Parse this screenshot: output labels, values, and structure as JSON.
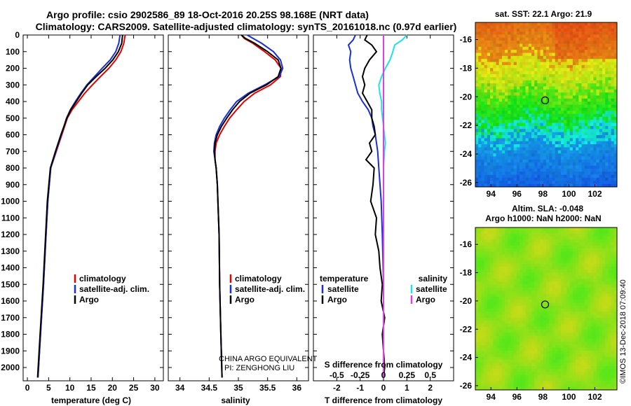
{
  "title_line1": "Argo profile: csio 2902586_89 18-Oct-2016 20.25S 98.168E (NRT data)",
  "title_line2": "Climatology: CARS2009. Satellite-adjusted climatology: synTS_20161018.nc (0.97d earlier)",
  "colors": {
    "climatology": "#e00000",
    "satellite": "#1a2fd6",
    "argo": "#000000",
    "sat_salinity": "#22e0e8",
    "argo_salinity": "#e040e0"
  },
  "chart_data": [
    {
      "type": "line",
      "id": "temperature",
      "xlabel": "temperature (deg C)",
      "xlim": [
        -1,
        32
      ],
      "ylim": [
        2080,
        0
      ],
      "xticks": [
        0,
        5,
        10,
        15,
        20,
        25,
        30
      ],
      "yticks": [
        0,
        100,
        200,
        300,
        400,
        500,
        600,
        700,
        800,
        900,
        1000,
        1100,
        1200,
        1300,
        1400,
        1500,
        1600,
        1700,
        1800,
        1900,
        2000
      ],
      "legend": [
        "climatology",
        "satellite-adj. clim.",
        "Argo"
      ],
      "legend_position": "lower-center",
      "series": [
        {
          "name": "climatology",
          "color": "#e00000",
          "depth": [
            0,
            50,
            100,
            150,
            200,
            250,
            300,
            350,
            400,
            450,
            500,
            600,
            700,
            800,
            1000,
            1200,
            1500,
            1800,
            2060
          ],
          "values": [
            23.0,
            22.7,
            22.0,
            20.8,
            19.2,
            17.2,
            15.3,
            13.5,
            12.0,
            10.5,
            9.4,
            8.1,
            6.8,
            5.5,
            4.8,
            4.4,
            3.8,
            3.1,
            2.5
          ]
        },
        {
          "name": "satellite-adj. clim.",
          "color": "#1a2fd6",
          "depth": [
            0,
            50,
            100,
            150,
            200,
            250,
            300,
            350,
            400,
            450,
            500,
            600,
            700,
            800,
            1000,
            1200,
            1500,
            1800,
            2060
          ],
          "values": [
            21.8,
            21.5,
            20.8,
            19.5,
            17.6,
            15.8,
            14.0,
            12.6,
            11.3,
            10.1,
            9.2,
            8.0,
            6.7,
            5.5,
            4.8,
            4.4,
            3.8,
            3.1,
            2.5
          ]
        },
        {
          "name": "Argo",
          "color": "#000000",
          "depth": [
            0,
            50,
            100,
            150,
            200,
            250,
            300,
            350,
            400,
            450,
            500,
            600,
            700,
            800,
            1000,
            1200,
            1500,
            1800,
            2060
          ],
          "values": [
            22.4,
            22.2,
            21.4,
            20.1,
            18.3,
            16.2,
            14.2,
            12.8,
            11.5,
            10.2,
            9.3,
            7.9,
            6.6,
            5.4,
            4.7,
            4.3,
            3.7,
            3.0,
            2.4
          ]
        }
      ]
    },
    {
      "type": "line",
      "id": "salinity",
      "xlabel": "salinity",
      "xlim": [
        33.8,
        36.2
      ],
      "ylim": [
        2080,
        0
      ],
      "xticks": [
        34,
        34.5,
        35,
        35.5,
        36
      ],
      "xticklabels": [
        "34",
        "34.5",
        "35",
        "35.5",
        "36"
      ],
      "legend": [
        "climatology",
        "satellite-adj. clim.",
        "Argo"
      ],
      "legend_position": "lower-center",
      "series": [
        {
          "name": "climatology",
          "color": "#e00000",
          "depth": [
            0,
            20,
            50,
            100,
            150,
            200,
            250,
            300,
            350,
            400,
            450,
            500,
            550,
            600,
            650,
            700,
            750,
            800,
            900,
            1000,
            1200,
            1500,
            1800,
            2060
          ],
          "values": [
            35.05,
            35.1,
            35.25,
            35.45,
            35.63,
            35.73,
            35.72,
            35.55,
            35.28,
            35.1,
            34.97,
            34.85,
            34.76,
            34.68,
            34.62,
            34.6,
            34.6,
            34.62,
            34.64,
            34.65,
            34.67,
            34.68,
            34.7,
            34.72
          ]
        },
        {
          "name": "satellite-adj. clim.",
          "color": "#1a2fd6",
          "depth": [
            0,
            20,
            50,
            100,
            150,
            200,
            250,
            300,
            350,
            400,
            450,
            500,
            550,
            600,
            650,
            700,
            750,
            800,
            900,
            1000,
            1200,
            1500,
            1800,
            2060
          ],
          "values": [
            35.15,
            35.25,
            35.4,
            35.6,
            35.72,
            35.76,
            35.7,
            35.45,
            35.17,
            34.97,
            34.86,
            34.76,
            34.68,
            34.62,
            34.59,
            34.58,
            34.6,
            34.62,
            34.64,
            34.65,
            34.67,
            34.68,
            34.7,
            34.72
          ]
        },
        {
          "name": "Argo",
          "color": "#000000",
          "depth": [
            0,
            20,
            50,
            100,
            150,
            200,
            250,
            300,
            350,
            400,
            450,
            500,
            550,
            600,
            650,
            700,
            750,
            800,
            900,
            1000,
            1200,
            1500,
            1800,
            2060
          ],
          "values": [
            35.05,
            35.12,
            35.28,
            35.5,
            35.68,
            35.73,
            35.68,
            35.48,
            35.2,
            35.02,
            34.9,
            34.8,
            34.71,
            34.64,
            34.6,
            34.59,
            34.6,
            34.62,
            34.64,
            34.65,
            34.67,
            34.68,
            34.7,
            34.72
          ]
        }
      ],
      "annotations": [
        "CHINA ARGO EQUIVALENT",
        "PI: ZENGHONG LIU"
      ]
    },
    {
      "type": "line",
      "id": "difference",
      "xlabel": "T difference from climatology",
      "xlabel_top": "S difference from climatology",
      "xlim": [
        -3,
        3
      ],
      "ylim": [
        2080,
        0
      ],
      "xticks": [
        -2,
        -1,
        0,
        1,
        2
      ],
      "xticks_s": [
        -0.5,
        -0.25,
        0,
        0.25,
        0.5
      ],
      "xticks_s_labels": [
        "-0.5",
        "-0.25",
        "0",
        "0.25",
        "0.5"
      ],
      "legend_temperature": [
        "temperature",
        "satellite",
        "Argo"
      ],
      "legend_salinity": [
        "salinity",
        "satellite",
        "Argo"
      ],
      "series": [
        {
          "name": "temperature satellite",
          "color": "#1a2fd6",
          "depth": [
            0,
            30,
            60,
            100,
            150,
            200,
            250,
            300,
            350,
            400,
            450,
            500,
            550,
            600,
            650,
            700,
            800,
            1000,
            1200,
            1500,
            1800,
            2060
          ],
          "values": [
            -1.2,
            -1.3,
            -1.5,
            -1.4,
            -1.45,
            -1.4,
            -1.3,
            -1.2,
            -1.1,
            -0.9,
            -0.65,
            -0.5,
            -0.45,
            -0.35,
            -0.3,
            -0.25,
            -0.2,
            -0.1,
            -0.05,
            0.0,
            0.0,
            0.0
          ]
        },
        {
          "name": "temperature Argo",
          "color": "#000000",
          "depth": [
            0,
            30,
            60,
            100,
            150,
            200,
            250,
            300,
            350,
            400,
            450,
            500,
            550,
            600,
            650,
            700,
            750,
            800,
            900,
            1000,
            1100,
            1200,
            1300,
            1400,
            1500,
            1600,
            1700,
            1800,
            1900,
            2000,
            2060
          ],
          "values": [
            -0.7,
            -0.8,
            -0.5,
            -0.3,
            -0.6,
            -0.8,
            -0.9,
            -0.8,
            -0.9,
            -0.7,
            -0.5,
            -0.5,
            -0.4,
            -0.35,
            -0.6,
            -0.5,
            -0.75,
            -0.4,
            -0.45,
            -0.55,
            -0.3,
            -0.35,
            -0.2,
            -0.15,
            -0.05,
            -0.1,
            0.05,
            -0.05,
            0.0,
            0.05,
            0.0
          ]
        },
        {
          "name": "salinity satellite",
          "color": "#22e0e8",
          "depth": [
            0,
            30,
            60,
            100,
            150,
            200,
            250,
            300,
            350,
            400,
            450,
            500,
            550,
            600,
            650,
            700,
            800,
            900,
            1000,
            1200,
            1500,
            1800,
            2060
          ],
          "values": [
            0.25,
            0.2,
            0.12,
            0.1,
            0.07,
            0.02,
            -0.02,
            -0.05,
            -0.04,
            -0.02,
            -0.02,
            -0.01,
            0.0,
            0.01,
            0.02,
            0.01,
            0.0,
            0.0,
            0.0,
            0.0,
            0.0,
            0.0,
            0.0
          ]
        },
        {
          "name": "salinity Argo",
          "color": "#e040e0",
          "depth": [
            0,
            2060
          ],
          "values": [
            0.0,
            0.0
          ]
        }
      ]
    },
    {
      "type": "heatmap",
      "id": "sst-map",
      "title": "sat. SST: 22.1  Argo: 21.9",
      "xlim": [
        92.8,
        103.7
      ],
      "ylim": [
        -26.3,
        -14.8
      ],
      "xticks": [
        94,
        96,
        98,
        100,
        102
      ],
      "yticks": [
        -16,
        -18,
        -20,
        -22,
        -24,
        -26
      ],
      "marker": {
        "lon": 98.168,
        "lat": -20.25
      }
    },
    {
      "type": "heatmap",
      "id": "sla-map",
      "title": "Altim. SLA: -0.048",
      "subtitle": "Argo h1000: NaN h2000: NaN",
      "xlim": [
        92.8,
        103.7
      ],
      "ylim": [
        -26.3,
        -14.8
      ],
      "xticks": [
        94,
        96,
        98,
        100,
        102
      ],
      "yticks": [
        -16,
        -18,
        -20,
        -22,
        -24,
        -26
      ],
      "marker": {
        "lon": 98.168,
        "lat": -20.25
      }
    }
  ],
  "panel_text": {
    "legend_clim": "climatology",
    "legend_sat": "satellite-adj. clim.",
    "legend_argo": "Argo",
    "diff_temp": "temperature",
    "diff_sal": "salinity",
    "diff_sat": "satellite",
    "diff_argo": "Argo",
    "annot1": "CHINA ARGO EQUIVALENT",
    "annot2": "PI: ZENGHONG LIU",
    "s_diff": "S difference from climatology",
    "t_diff": "T difference from climatology",
    "xlabel_temp": "temperature (deg C)",
    "xlabel_sal": "salinity",
    "sst_title": "sat. SST: 22.1  Argo: 21.9",
    "sla_title": "Altim. SLA: -0.048",
    "sla_sub": "Argo h1000: NaN h2000: NaN",
    "credit": "©IMOS 13-Dec-2018 07:09:40"
  }
}
